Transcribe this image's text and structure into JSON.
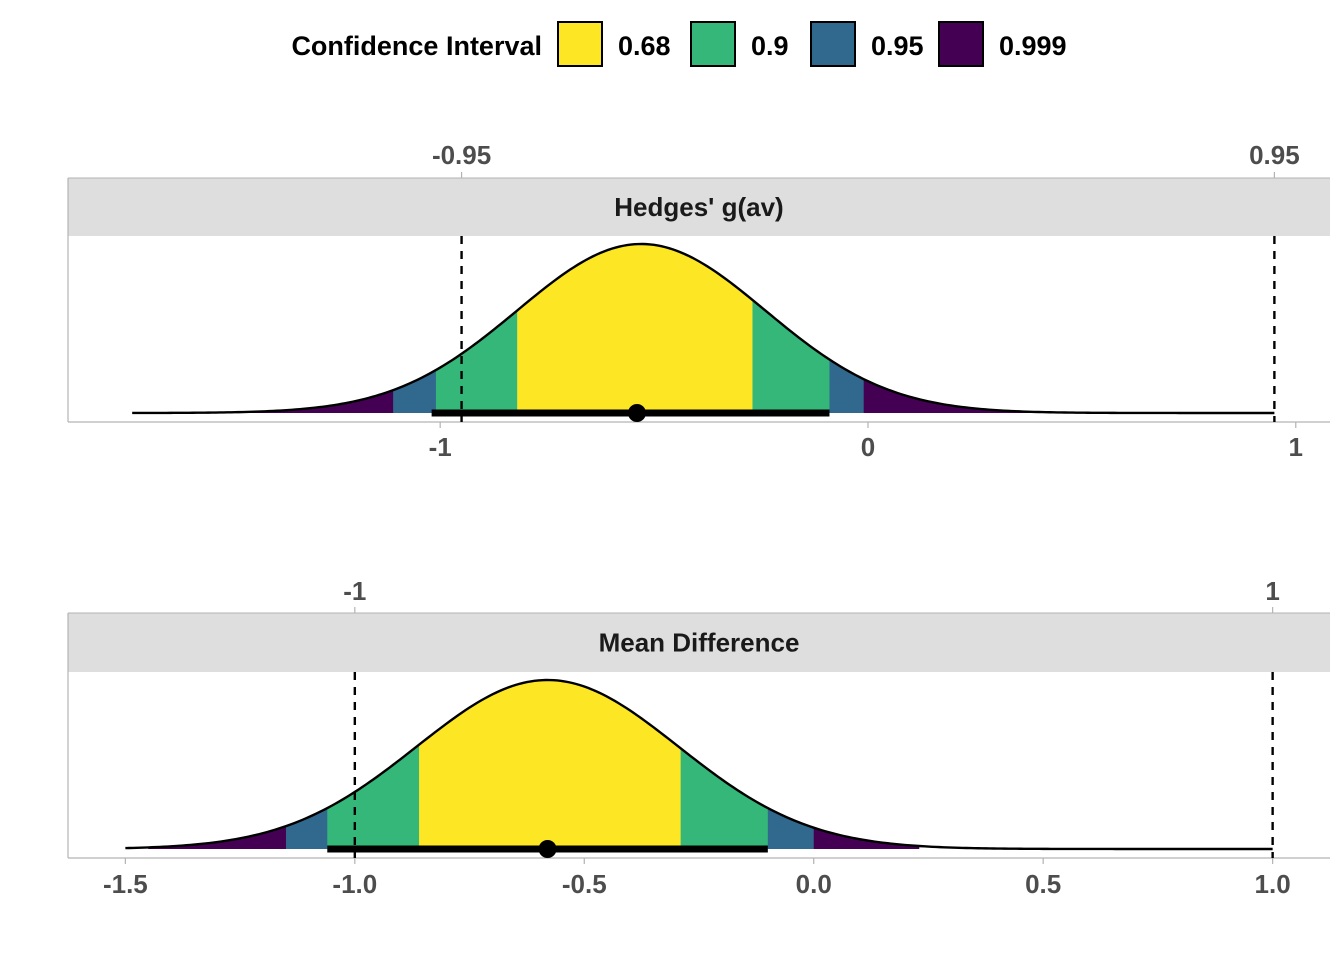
{
  "chart_data": {
    "type": "area",
    "legend": {
      "title": "Confidence Interval",
      "placement": "top",
      "entries": [
        {
          "label": "0.68",
          "color": "#FDE725"
        },
        {
          "label": "0.9",
          "color": "#35B779"
        },
        {
          "label": "0.95",
          "color": "#31688E"
        },
        {
          "label": "0.999",
          "color": "#440154"
        }
      ]
    },
    "panels": [
      {
        "strip_label": "Hedges' g(av)",
        "distribution": {
          "mean": -0.53,
          "sd": 0.29,
          "x_from": -1.72,
          "x_to": 0.95
        },
        "intervals": [
          {
            "level": "0.68",
            "lower": -0.82,
            "upper": -0.27
          },
          {
            "level": "0.9",
            "lower": -1.01,
            "upper": -0.09
          },
          {
            "level": "0.95",
            "lower": -1.11,
            "upper": -0.01
          },
          {
            "level": "0.999",
            "lower": -1.6,
            "upper": 0.41
          }
        ],
        "point_estimate": -0.54,
        "interval_bar": {
          "lower": -1.02,
          "upper": -0.09
        },
        "reference_lines": [
          -0.95,
          0.95
        ],
        "x_axis": {
          "range": [
            -1.87,
            1.08
          ],
          "ticks": [
            -1,
            0,
            1
          ],
          "tick_labels": [
            "-1",
            "0",
            "1"
          ]
        },
        "top_axis": {
          "ticks": [
            -0.95,
            0.95
          ],
          "tick_labels": [
            "-0.95",
            "0.95"
          ]
        }
      },
      {
        "strip_label": "Mean Difference",
        "distribution": {
          "mean": -0.58,
          "sd": 0.285,
          "x_from": -1.5,
          "x_to": 1.0
        },
        "intervals": [
          {
            "level": "0.68",
            "lower": -0.86,
            "upper": -0.29
          },
          {
            "level": "0.9",
            "lower": -1.06,
            "upper": -0.1
          },
          {
            "level": "0.95",
            "lower": -1.15,
            "upper": 0.0
          },
          {
            "level": "0.999",
            "lower": -1.45,
            "upper": 0.23
          }
        ],
        "point_estimate": -0.58,
        "interval_bar": {
          "lower": -1.06,
          "upper": -0.1
        },
        "reference_lines": [
          -1,
          1
        ],
        "x_axis": {
          "range": [
            -1.625,
            1.125
          ],
          "ticks": [
            -1.5,
            -1.0,
            -0.5,
            0.0,
            0.5,
            1.0
          ],
          "tick_labels": [
            "-1.5",
            "-1.0",
            "-0.5",
            "0.0",
            "0.5",
            "1.0"
          ]
        },
        "top_axis": {
          "ticks": [
            -1,
            1
          ],
          "tick_labels": [
            "-1",
            "1"
          ]
        }
      }
    ]
  }
}
